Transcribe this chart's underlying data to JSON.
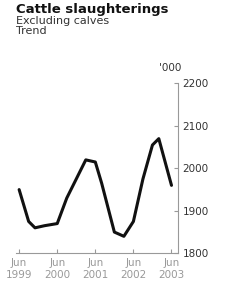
{
  "title": "Cattle slaughterings",
  "subtitle1": "Excluding calves",
  "subtitle2": "Trend",
  "y_label": "'000",
  "ylim": [
    1800,
    2200
  ],
  "yticks": [
    1800,
    1900,
    2000,
    2100,
    2200
  ],
  "x_tick_labels": [
    "Jun\n1999",
    "Jun\n2000",
    "Jun\n2001",
    "Jun\n2002",
    "Jun\n2003"
  ],
  "x_tick_positions": [
    0,
    12,
    24,
    36,
    48
  ],
  "line_color": "#111111",
  "line_width": 2.2,
  "background_color": "#ffffff",
  "spine_color": "#999999",
  "tick_color": "#999999",
  "label_color": "#333333",
  "x_values": [
    0,
    3,
    5,
    8,
    12,
    15,
    18,
    21,
    24,
    26,
    30,
    33,
    36,
    39,
    42,
    44,
    48
  ],
  "y_values": [
    1950,
    1875,
    1860,
    1865,
    1870,
    1930,
    1975,
    2020,
    2015,
    1965,
    1850,
    1840,
    1875,
    1975,
    2055,
    2070,
    1960
  ]
}
